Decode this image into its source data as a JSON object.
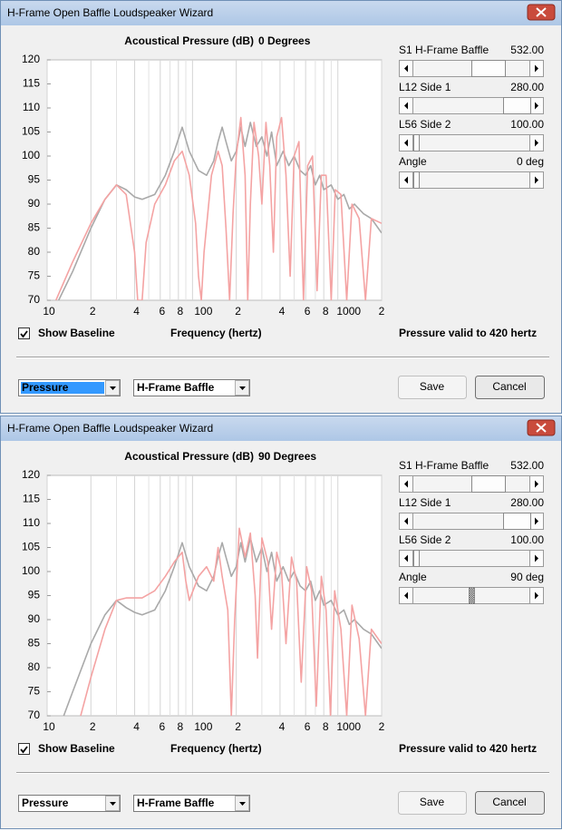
{
  "windows": [
    {
      "title": "H-Frame Open Baffle Loudspeaker Wizard",
      "chart": {
        "type": "line",
        "title": "Acoustical Pressure (dB)",
        "subtitle": "0 Degrees",
        "xlabel": "Frequency (hertz)",
        "log_x": true,
        "grid": "x",
        "xlim": [
          10,
          2000
        ],
        "ylim": [
          70,
          120
        ],
        "xticks": [
          10,
          {
            "value": 20,
            "label": "2"
          },
          {
            "value": 40,
            "label": "4"
          },
          {
            "value": 60,
            "label": "6"
          },
          {
            "value": 80,
            "label": "8"
          },
          100,
          {
            "value": 200,
            "label": "2"
          },
          {
            "value": 400,
            "label": "4"
          },
          {
            "value": 600,
            "label": "6"
          },
          {
            "value": 800,
            "label": "8"
          },
          1000,
          {
            "value": 2000,
            "label": "2"
          }
        ],
        "xminor": [
          30,
          50,
          70,
          90,
          300,
          500,
          700,
          900
        ],
        "yticks": [
          70,
          75,
          80,
          85,
          90,
          95,
          100,
          105,
          110,
          115,
          120
        ],
        "series": [
          {
            "color": "#a9a9a9",
            "x": [
              12,
              15,
              20,
              25,
              30,
              35,
              40,
              45,
              55,
              65,
              75,
              85,
              95,
              110,
              125,
              140,
              150,
              160,
              170,
              185,
              200,
              215,
              230,
              250,
              275,
              300,
              325,
              350,
              380,
              420,
              460,
              500,
              550,
              600,
              650,
              700,
              750,
              800,
              900,
              1000,
              1100,
              1200,
              1300,
              1500,
              1700,
              2000
            ],
            "values": [
              70,
              76,
              85,
              91,
              94,
              93,
              91.5,
              91,
              92,
              96,
              101,
              106,
              101,
              97,
              96,
              99,
              103,
              106,
              103,
              99,
              101,
              106,
              102,
              107,
              102,
              104,
              100,
              105,
              98,
              101,
              98,
              100,
              97,
              96,
              98,
              94,
              96,
              93,
              94,
              91,
              92,
              89,
              90,
              88,
              87,
              84
            ]
          },
          {
            "color": "#f4a3a3",
            "x": [
              11.5,
              15,
              20,
              25,
              30,
              35,
              40,
              42,
              45,
              48,
              55,
              65,
              75,
              85,
              95,
              105,
              110,
              115,
              120,
              135,
              150,
              160,
              170,
              180,
              190,
              200,
              215,
              230,
              240,
              250,
              265,
              285,
              300,
              320,
              340,
              360,
              380,
              410,
              440,
              470,
              500,
              540,
              580,
              620,
              670,
              720,
              770,
              830,
              900,
              960,
              1050,
              1150,
              1250,
              1400,
              1550,
              1700,
              2000
            ],
            "values": [
              70,
              78,
              86,
              91,
              94,
              92,
              80,
              70,
              70,
              82,
              90,
              94,
              99,
              101,
              96,
              86,
              75,
              70,
              80,
              96,
              101,
              98,
              85,
              70,
              88,
              100,
              108,
              96,
              70,
              90,
              107,
              100,
              90,
              107,
              98,
              80,
              104,
              108,
              96,
              75,
              100,
              103,
              70,
              98,
              100,
              72,
              96,
              96,
              70,
              93,
              92,
              70,
              90,
              87,
              70,
              87,
              86
            ]
          }
        ]
      },
      "controls": [
        {
          "label": "S1  H-Frame Baffle",
          "value": "532.00"
        },
        {
          "label": "L12  Side 1",
          "value": "280.00"
        },
        {
          "label": "L56  Side 2",
          "value": "100.00"
        },
        {
          "label": "Angle",
          "value": "0 deg"
        }
      ],
      "show_baseline": "Show Baseline",
      "status": "Pressure valid to 420 hertz",
      "dropdowns": [
        "Pressure",
        "H-Frame Baffle"
      ],
      "buttons": [
        "Save",
        "Cancel"
      ]
    },
    {
      "title": "H-Frame Open Baffle Loudspeaker Wizard",
      "chart": {
        "type": "line",
        "title": "Acoustical Pressure (dB)",
        "subtitle": "90 Degrees",
        "xlabel": "Frequency (hertz)",
        "log_x": true,
        "grid": "x",
        "xlim": [
          10,
          2000
        ],
        "ylim": [
          70,
          120
        ],
        "xticks": [
          10,
          {
            "value": 20,
            "label": "2"
          },
          {
            "value": 40,
            "label": "4"
          },
          {
            "value": 60,
            "label": "6"
          },
          {
            "value": 80,
            "label": "8"
          },
          100,
          {
            "value": 200,
            "label": "2"
          },
          {
            "value": 400,
            "label": "4"
          },
          {
            "value": 600,
            "label": "6"
          },
          {
            "value": 800,
            "label": "8"
          },
          1000,
          {
            "value": 2000,
            "label": "2"
          }
        ],
        "xminor": [
          30,
          50,
          70,
          90,
          300,
          500,
          700,
          900
        ],
        "yticks": [
          70,
          75,
          80,
          85,
          90,
          95,
          100,
          105,
          110,
          115,
          120
        ],
        "series": [
          {
            "color": "#a9a9a9",
            "x": [
              13,
              15,
              20,
              25,
              30,
              35,
              40,
              45,
              55,
              65,
              75,
              85,
              95,
              110,
              125,
              140,
              150,
              160,
              170,
              185,
              200,
              215,
              230,
              250,
              275,
              300,
              325,
              350,
              380,
              420,
              460,
              500,
              550,
              600,
              650,
              700,
              750,
              800,
              900,
              1000,
              1100,
              1200,
              1300,
              1500,
              1700,
              2000
            ],
            "values": [
              70,
              75,
              85,
              91,
              94,
              92.5,
              91.5,
              91,
              92,
              96,
              101,
              106,
              101,
              97,
              96,
              99,
              103,
              106,
              103,
              99,
              101,
              106,
              102,
              107,
              102,
              105,
              100,
              104,
              98,
              101,
              98,
              100,
              97,
              96,
              98,
              94,
              96,
              93,
              94,
              91,
              92,
              89,
              90,
              88,
              87,
              84
            ]
          },
          {
            "color": "#f4a3a3",
            "x": [
              17,
              20,
              25,
              30,
              35,
              45,
              55,
              65,
              75,
              85,
              90,
              95,
              110,
              125,
              140,
              150,
              160,
              175,
              185,
              195,
              210,
              230,
              250,
              270,
              280,
              300,
              330,
              350,
              380,
              410,
              440,
              480,
              520,
              560,
              610,
              660,
              710,
              770,
              830,
              890,
              950,
              1050,
              1150,
              1250,
              1400,
              1550,
              1700,
              2000
            ],
            "values": [
              70,
              78,
              88,
              94,
              94.5,
              94.5,
              96,
              99,
              102,
              104,
              98,
              94,
              99,
              101,
              98,
              105,
              99,
              92,
              70,
              90,
              109,
              103,
              108,
              95,
              82,
              107,
              102,
              88,
              104,
              100,
              85,
              103,
              98,
              77,
              101,
              96,
              72,
              99,
              92,
              70,
              96,
              88,
              70,
              93,
              86,
              70,
              88,
              85
            ]
          }
        ]
      },
      "controls": [
        {
          "label": "S1  H-Frame Baffle",
          "value": "532.00"
        },
        {
          "label": "L12  Side 1",
          "value": "280.00"
        },
        {
          "label": "L56  Side 2",
          "value": "100.00"
        },
        {
          "label": "Angle",
          "value": "90 deg"
        }
      ],
      "show_baseline": "Show Baseline",
      "status": "Pressure valid to 420 hertz",
      "dropdowns": [
        "Pressure",
        "H-Frame Baffle"
      ],
      "buttons": [
        "Save",
        "Cancel"
      ]
    }
  ]
}
